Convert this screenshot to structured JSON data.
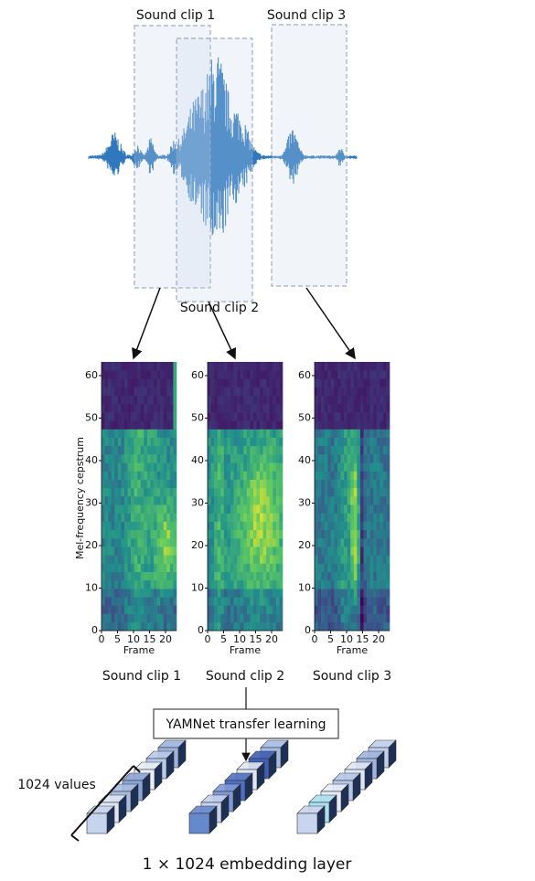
{
  "waveform": {
    "clip_labels": [
      "Sound clip 1",
      "Sound clip 2",
      "Sound clip 3"
    ]
  },
  "spectrograms": {
    "ylabel": "Mel-frequency cepstrum",
    "xlabel": "Frame",
    "yticks": [
      0,
      10,
      20,
      30,
      40,
      50,
      60
    ],
    "xticks": [
      0,
      5,
      10,
      15,
      20
    ],
    "captions": [
      "Sound clip 1",
      "Sound clip 2",
      "Sound clip 3"
    ]
  },
  "model": {
    "label": "YAMNet transfer learning"
  },
  "embedding": {
    "size_label": "1024 values",
    "caption": "1 × 1024 embedding layer"
  }
}
